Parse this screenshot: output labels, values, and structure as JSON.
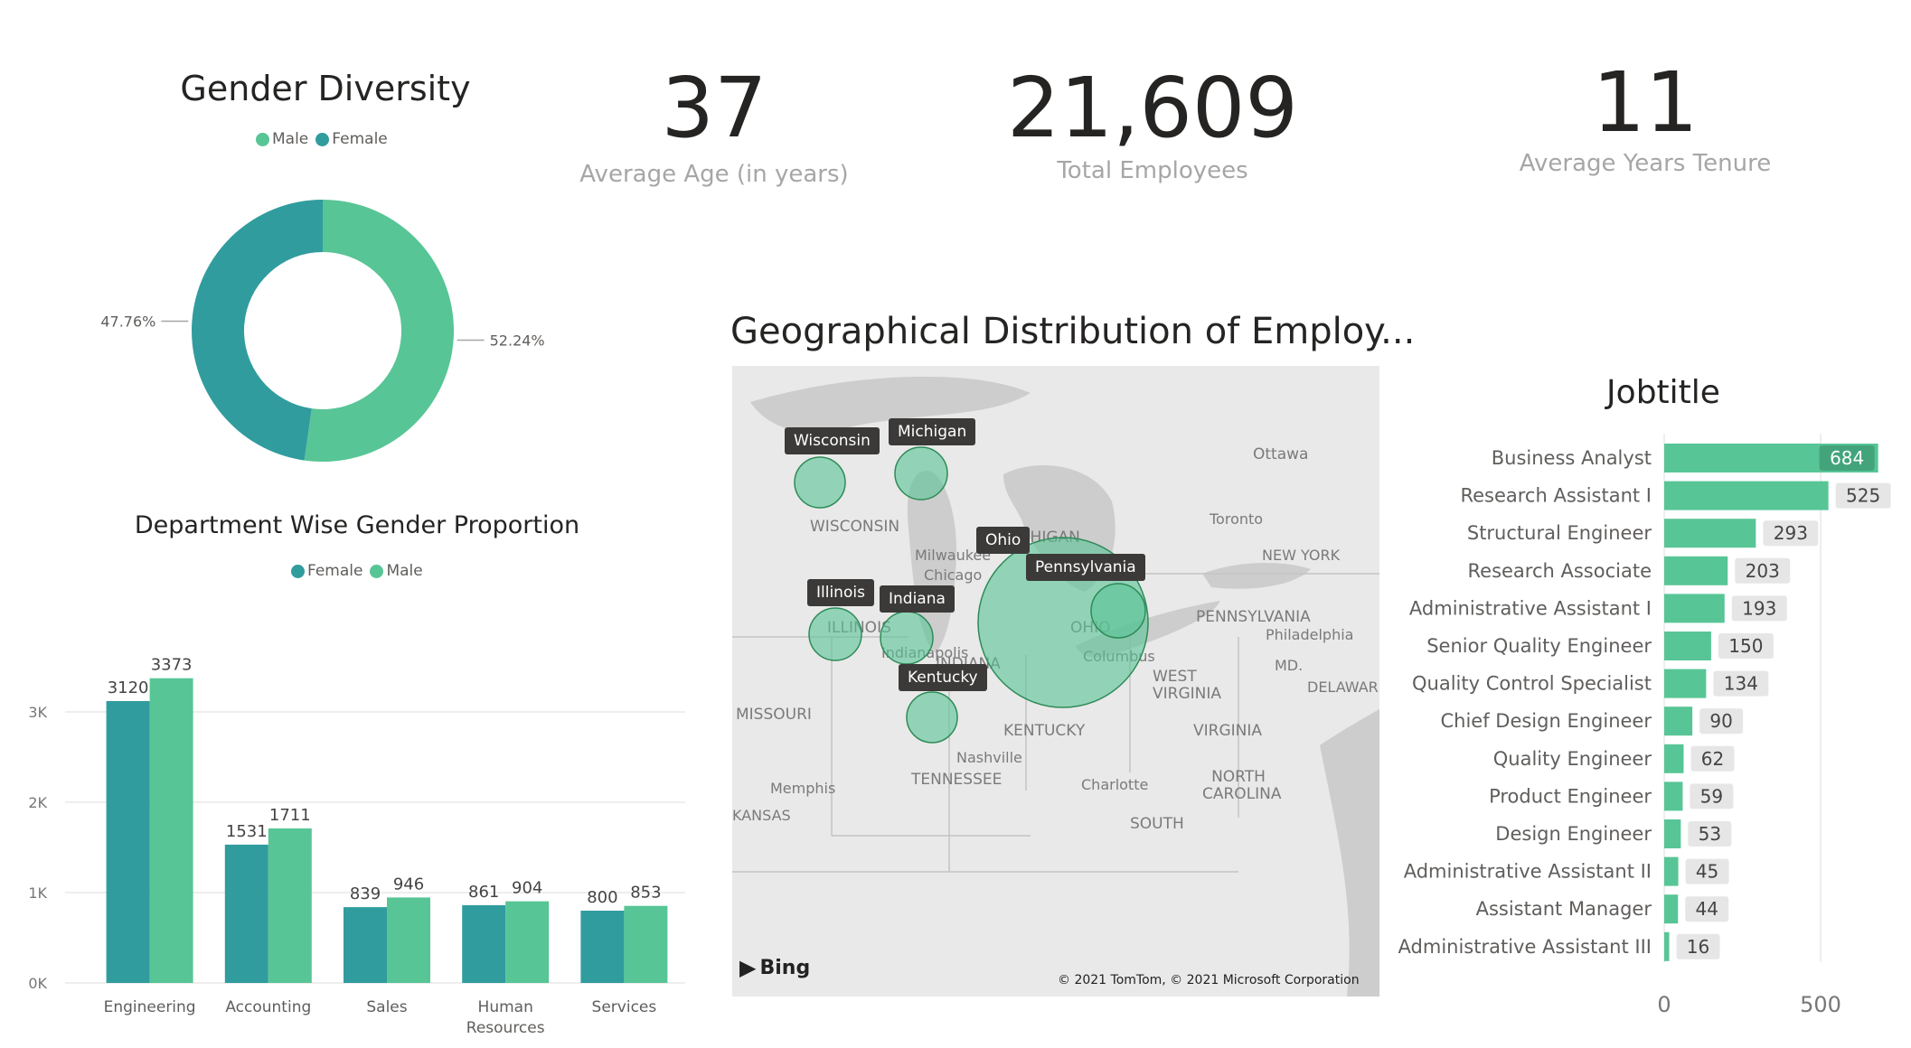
{
  "kpis": [
    {
      "value": "37",
      "label": "Average Age (in years)"
    },
    {
      "value": "21,609",
      "label": "Total Employees"
    },
    {
      "value": "11",
      "label": "Average Years Tenure"
    }
  ],
  "gender_diversity": {
    "title": "Gender Diversity",
    "legend": [
      {
        "name": "Male",
        "color": "#58c596"
      },
      {
        "name": "Female",
        "color": "#319c9e"
      }
    ],
    "slice_labels": {
      "male": "52.24%",
      "female": "47.76%"
    }
  },
  "department": {
    "title": "Department Wise Gender Proportion",
    "legend": [
      {
        "name": "Female",
        "color": "#319c9e"
      },
      {
        "name": "Male",
        "color": "#58c596"
      }
    ],
    "tick_labels": [
      "0K",
      "1K",
      "2K",
      "3K"
    ],
    "category_labels": [
      [
        "Engineering"
      ],
      [
        "Accounting"
      ],
      [
        "Sales"
      ],
      [
        "Human",
        "Resources"
      ],
      [
        "Services"
      ]
    ]
  },
  "map": {
    "title": "Geographical Distribution of Employ...",
    "attribution": "© 2021 TomTom, © 2021 Microsoft Corporation",
    "bing": "Bing",
    "states": [
      "Wisconsin",
      "Michigan",
      "Ohio",
      "Pennsylvania",
      "Illinois",
      "Indiana",
      "Kentucky"
    ],
    "places": [
      "WISCONSIN",
      "MICHIGAN",
      "Ottawa",
      "Toronto",
      "NEW YORK",
      "Milwaukee",
      "Chicago",
      "ILLINOIS",
      "Indianapolis",
      "INDIANA",
      "OHIO",
      "Columbus",
      "PENNSYLVANIA",
      "Philadelphia",
      "MD.",
      "WEST VIRGINIA",
      "DELAWARE",
      "MISSOURI",
      "KENTUCKY",
      "Nashville",
      "VIRGINIA",
      "Memphis",
      "TENNESSEE",
      "Charlotte",
      "NORTH CAROLINA",
      "SOUTH",
      "KANSAS"
    ]
  },
  "jobtitle": {
    "title": "Jobtitle",
    "tick_labels": [
      "0",
      "500"
    ]
  },
  "chart_data": [
    {
      "type": "pie",
      "title": "Gender Diversity",
      "categories": [
        "Male",
        "Female"
      ],
      "values": [
        52.24,
        47.76
      ],
      "colors": [
        "#58c596",
        "#319c9e"
      ],
      "donut": true,
      "legend": "top-center"
    },
    {
      "type": "bar",
      "title": "Department Wise Gender Proportion",
      "categories": [
        "Engineering",
        "Accounting",
        "Sales",
        "Human Resources",
        "Services"
      ],
      "series": [
        {
          "name": "Female",
          "values": [
            3120,
            1531,
            839,
            861,
            800
          ],
          "color": "#319c9e"
        },
        {
          "name": "Male",
          "values": [
            3373,
            1711,
            946,
            904,
            853
          ],
          "color": "#58c596"
        }
      ],
      "ylim": [
        0,
        3500
      ],
      "yticks": [
        0,
        1000,
        2000,
        3000
      ],
      "grid": true,
      "legend": "top-center"
    },
    {
      "type": "bar",
      "orientation": "horizontal",
      "title": "Jobtitle",
      "categories": [
        "Business Analyst",
        "Research Assistant I",
        "Structural Engineer",
        "Research Associate",
        "Administrative Assistant I",
        "Senior Quality Engineer",
        "Quality Control Specialist",
        "Chief Design Engineer",
        "Quality Engineer",
        "Product Engineer",
        "Design Engineer",
        "Administrative Assistant II",
        "Assistant Manager",
        "Administrative Assistant III"
      ],
      "values": [
        684,
        525,
        293,
        203,
        193,
        150,
        134,
        90,
        62,
        59,
        53,
        45,
        44,
        16
      ],
      "color": "#58c596",
      "xlim": [
        0,
        700
      ],
      "xticks": [
        0,
        500
      ],
      "grid": true
    },
    {
      "type": "scatter",
      "subtype": "bubble-map",
      "title": "Geographical Distribution of Employ...",
      "categories": [
        "Wisconsin",
        "Michigan",
        "Ohio",
        "Pennsylvania",
        "Illinois",
        "Indiana",
        "Kentucky"
      ],
      "color": "#58c596"
    }
  ]
}
